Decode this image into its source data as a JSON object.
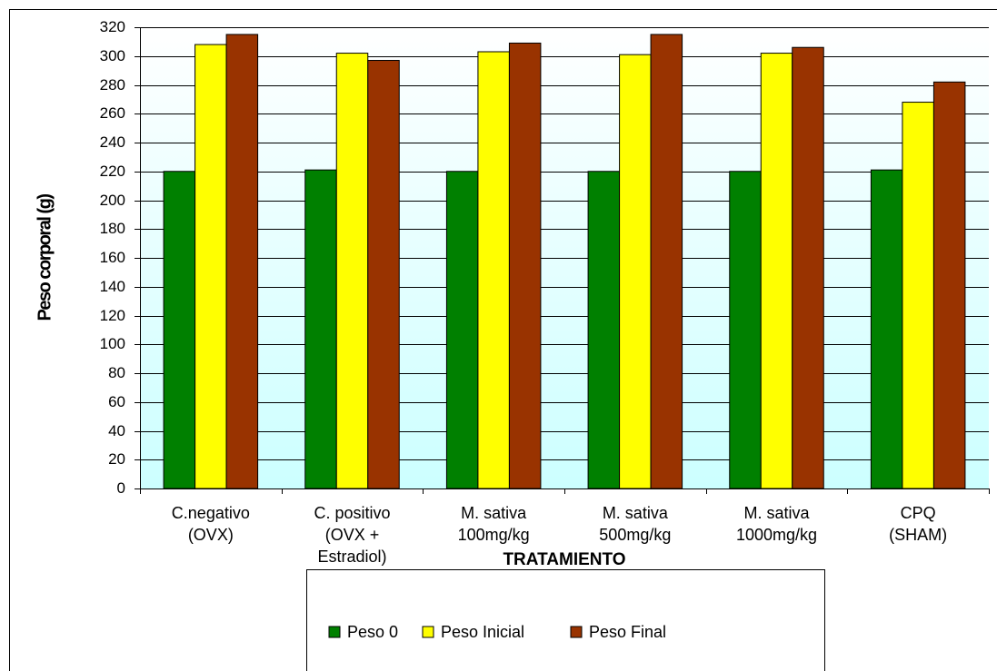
{
  "chart_data": {
    "type": "bar",
    "y_label": "Peso corporal (g)",
    "x_label": "TRATAMIENTO",
    "categories": [
      [
        "C.negativo",
        "(OVX)"
      ],
      [
        "C. positivo",
        "(OVX +",
        "Estradiol)"
      ],
      [
        "M. sativa",
        "100mg/kg"
      ],
      [
        "M. sativa",
        "500mg/kg"
      ],
      [
        "M. sativa",
        "1000mg/kg"
      ],
      [
        "CPQ",
        "(SHAM)"
      ]
    ],
    "series": [
      {
        "name": "Peso 0",
        "color": "#008000",
        "values": [
          220,
          221,
          220,
          220,
          220,
          221
        ]
      },
      {
        "name": "Peso Inicial",
        "color": "#ffff00",
        "values": [
          308,
          302,
          303,
          301,
          302,
          268
        ]
      },
      {
        "name": "Peso Final",
        "color": "#993300",
        "values": [
          315,
          297,
          309,
          315,
          306,
          282
        ]
      }
    ],
    "ylim": [
      0,
      320
    ],
    "yticks": [
      0,
      20,
      40,
      60,
      80,
      100,
      120,
      140,
      160,
      180,
      200,
      220,
      240,
      260,
      280,
      300,
      320
    ],
    "grid": true,
    "legend": "bottom"
  }
}
